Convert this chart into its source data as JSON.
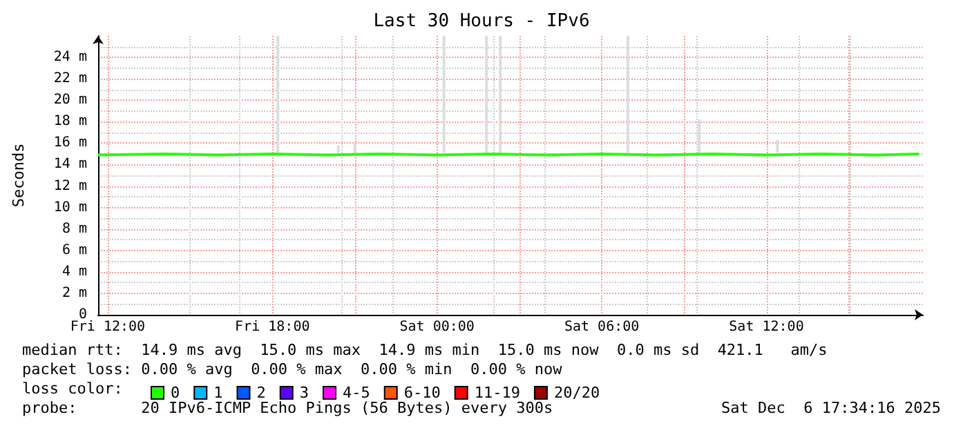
{
  "chart_data": {
    "type": "line",
    "title": "Last 30 Hours - IPv6",
    "ylabel": "Seconds",
    "xlim": [
      "2025-12-05T11:39",
      "2025-12-06T17:42"
    ],
    "xticks": [
      {
        "value": "2025-12-05T12:00",
        "label": "Fri 12:00"
      },
      {
        "value": "2025-12-05T15:00",
        "label": null
      },
      {
        "value": "2025-12-05T18:00",
        "label": "Fri 18:00"
      },
      {
        "value": "2025-12-05T21:00",
        "label": null
      },
      {
        "value": "2025-12-06T00:00",
        "label": "Sat 00:00"
      },
      {
        "value": "2025-12-06T03:00",
        "label": null
      },
      {
        "value": "2025-12-06T06:00",
        "label": "Sat 06:00"
      },
      {
        "value": "2025-12-06T09:00",
        "label": null
      },
      {
        "value": "2025-12-06T12:00",
        "label": "Sat 12:00"
      },
      {
        "value": "2025-12-06T15:00",
        "label": null
      }
    ],
    "ylim": [
      0,
      26
    ],
    "yticks": [
      {
        "value": 0,
        "label": "0"
      },
      {
        "value": 2,
        "label": "2 m"
      },
      {
        "value": 4,
        "label": "4 m"
      },
      {
        "value": 6,
        "label": "6 m"
      },
      {
        "value": 8,
        "label": "8 m"
      },
      {
        "value": 10,
        "label": "10 m"
      },
      {
        "value": 12,
        "label": "12 m"
      },
      {
        "value": 14,
        "label": "14 m"
      },
      {
        "value": 16,
        "label": "16 m"
      },
      {
        "value": 18,
        "label": "18 m"
      },
      {
        "value": 20,
        "label": "20 m"
      },
      {
        "value": 22,
        "label": "22 m"
      },
      {
        "value": 24,
        "label": "24 m"
      }
    ],
    "grid": true,
    "legend": "bottom left",
    "legend_title": "loss color:",
    "series": [
      {
        "type": "bar",
        "color": "#dddddd",
        "x": [
          "2025-12-05T18:12",
          "2025-12-05T20:24",
          "2025-12-05T21:00",
          "2025-12-06T00:15",
          "2025-12-06T01:48",
          "2025-12-06T02:18",
          "2025-12-06T06:57",
          "2025-12-06T09:33",
          "2025-12-06T12:24"
        ],
        "base": [
          15.1,
          15.1,
          15.1,
          15.1,
          15.1,
          15.1,
          15.1,
          15.1,
          15.1
        ],
        "values": [
          10.9,
          0.7,
          0.9,
          10.9,
          10.9,
          10.9,
          10.9,
          3.1,
          1.2
        ]
      },
      {
        "name": "0",
        "color": "#26ff00",
        "x": [
          "2025-12-05T11:39",
          "2025-12-05T14:00",
          "2025-12-05T16:00",
          "2025-12-05T18:00",
          "2025-12-05T20:00",
          "2025-12-05T22:00",
          "2025-12-06T00:00",
          "2025-12-06T02:00",
          "2025-12-06T04:00",
          "2025-12-06T06:00",
          "2025-12-06T08:00",
          "2025-12-06T10:00",
          "2025-12-06T12:00",
          "2025-12-06T14:00",
          "2025-12-06T16:00",
          "2025-12-06T17:33"
        ],
        "values": [
          14.9,
          15.0,
          14.9,
          15.0,
          14.9,
          15.0,
          14.9,
          15.0,
          14.9,
          15.0,
          14.9,
          15.0,
          14.9,
          15.0,
          14.9,
          15.0
        ]
      },
      {
        "name": "1",
        "color": "#00b8ff"
      },
      {
        "name": "2",
        "color": "#0059ff"
      },
      {
        "name": "3",
        "color": "#5e00ff"
      },
      {
        "name": "4-5",
        "color": "#ff00ff"
      },
      {
        "name": "6-10",
        "color": "#ff5500"
      },
      {
        "name": "11-19",
        "color": "#ff0000"
      },
      {
        "name": "20/20",
        "color": "#a10000"
      }
    ],
    "annotations": [
      "median rtt:  14.9 ms avg  15.0 ms max  14.9 ms min  15.0 ms now  0.0 ms sd  421.1   am/s",
      "packet loss: 0.00 % avg  0.00 % max  0.00 % min  0.00 % now",
      "probe:       20 IPv6-ICMP Echo Pings (56 Bytes) every 300s",
      "Sat Dec  6 17:34:16 2025"
    ]
  }
}
